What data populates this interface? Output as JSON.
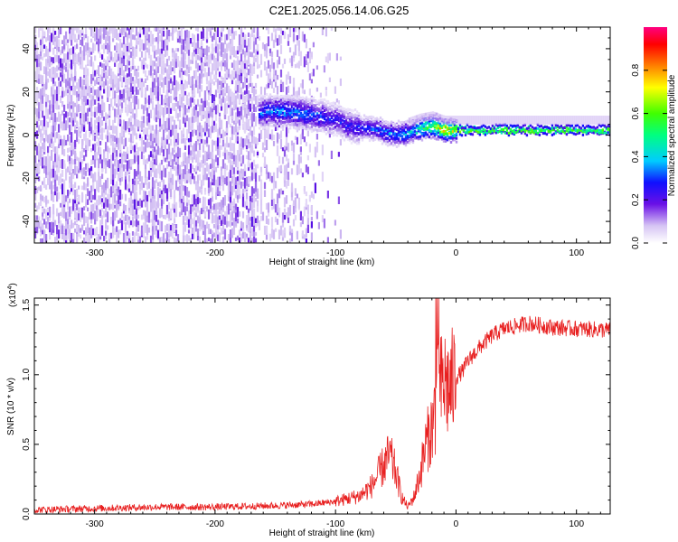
{
  "title": "C2E1.2025.056.14.06.G25",
  "chart_data": [
    {
      "type": "heatmap",
      "xlabel": "Height of straight line (km)",
      "ylabel": "Frequency (Hz)",
      "xlim": [
        -350,
        128
      ],
      "ylim": [
        -50,
        50
      ],
      "xticks": [
        -300,
        -200,
        -100,
        0,
        100
      ],
      "yticks": [
        -40,
        -20,
        0,
        20,
        40
      ],
      "colorbar": {
        "label": "Normalized spectral amplitude",
        "range": [
          0,
          1
        ],
        "ticks": [
          "0.0",
          "0.2",
          "0.4",
          "0.6",
          "0.8"
        ],
        "colors": [
          "#ffffff",
          "#c8b0f0",
          "#6010e0",
          "#1010ff",
          "#00c8ff",
          "#00ff80",
          "#40ff00",
          "#ffff00",
          "#ff8000",
          "#ff0000",
          "#ff0080"
        ]
      },
      "ridge": {
        "x": [
          -165,
          -150,
          -130,
          -110,
          -100,
          -90,
          -80,
          -70,
          -60,
          -50,
          -40,
          -30,
          -20,
          -10,
          0,
          20,
          50,
          100,
          128
        ],
        "freq": [
          10,
          11,
          10,
          8,
          7,
          4,
          3,
          3,
          1,
          0,
          1,
          3,
          4,
          2,
          2,
          2,
          2,
          2,
          2
        ],
        "amplitude": [
          0.35,
          0.4,
          0.38,
          0.32,
          0.3,
          0.3,
          0.32,
          0.35,
          0.38,
          0.4,
          0.45,
          0.55,
          0.7,
          0.82,
          0.75,
          0.7,
          0.72,
          0.7,
          0.7
        ]
      }
    },
    {
      "type": "line",
      "xlabel": "Height of straight line (km)",
      "ylabel": "SNR (10 * v/v)",
      "yscale_label": "(x10",
      "yscale_exp": "4",
      "xlim": [
        -350,
        128
      ],
      "ylim": [
        0,
        1.55
      ],
      "xticks": [
        -300,
        -200,
        -100,
        0,
        100
      ],
      "yticks": [
        "0.0",
        "0.5",
        "1.0",
        "1.5"
      ],
      "color": "#e82020",
      "series": [
        {
          "x": [
            -350,
            -300,
            -250,
            -200,
            -150,
            -120,
            -100,
            -80,
            -70,
            -60,
            -55,
            -50,
            -45,
            -40,
            -35,
            -30,
            -25,
            -20,
            -15,
            -10,
            -5,
            0,
            5,
            10,
            20,
            30,
            40,
            60,
            80,
            100,
            128
          ],
          "values": [
            0.03,
            0.04,
            0.05,
            0.05,
            0.06,
            0.07,
            0.09,
            0.13,
            0.2,
            0.35,
            0.42,
            0.3,
            0.12,
            0.05,
            0.12,
            0.28,
            0.5,
            0.62,
            0.85,
            0.95,
            0.9,
            0.98,
            1.02,
            1.1,
            1.2,
            1.28,
            1.33,
            1.37,
            1.34,
            1.33,
            1.32
          ]
        }
      ]
    }
  ]
}
